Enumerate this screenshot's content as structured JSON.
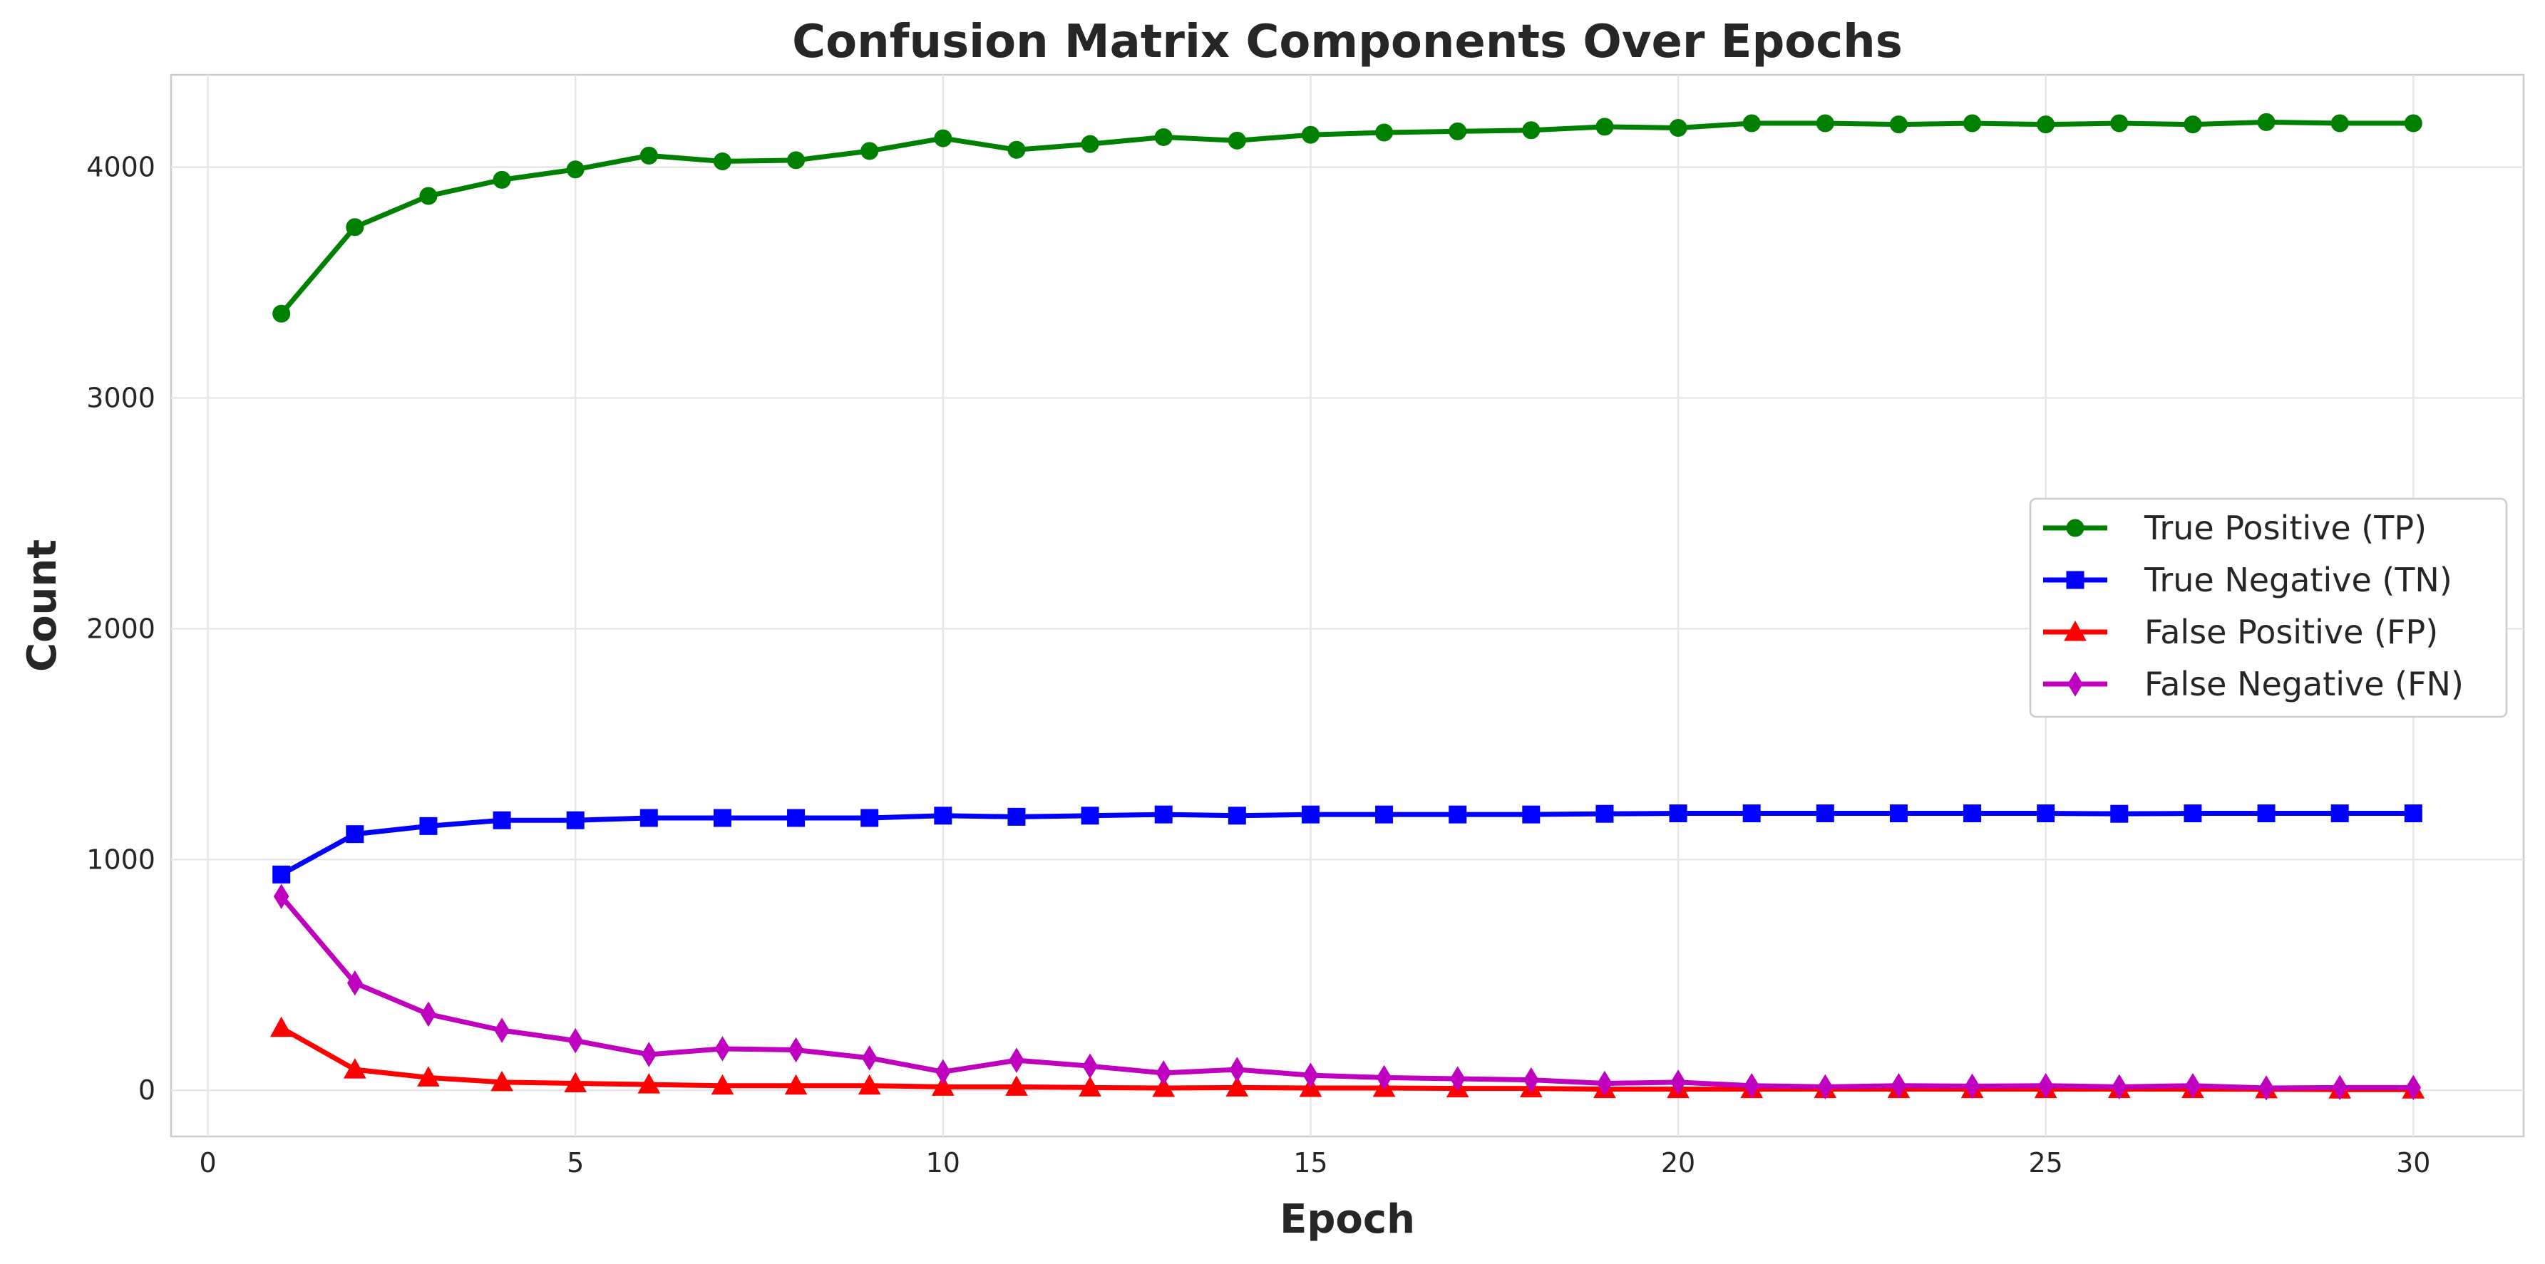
{
  "chart_data": {
    "type": "line",
    "title": "Confusion Matrix Components Over Epochs",
    "xlabel": "Epoch",
    "ylabel": "Count",
    "xlim": [
      -0.5,
      31.5
    ],
    "ylim": [
      -200,
      4400
    ],
    "xticks": [
      0,
      5,
      10,
      15,
      20,
      25,
      30
    ],
    "yticks": [
      0,
      1000,
      2000,
      3000,
      4000
    ],
    "grid": true,
    "legend_position": "center-right",
    "x": [
      1,
      2,
      3,
      4,
      5,
      6,
      7,
      8,
      9,
      10,
      11,
      12,
      13,
      14,
      15,
      16,
      17,
      18,
      19,
      20,
      21,
      22,
      23,
      24,
      25,
      26,
      27,
      28,
      29,
      30
    ],
    "series": [
      {
        "name": "True Positive (TP)",
        "color": "#008000",
        "marker": "circle",
        "values": [
          3365,
          3740,
          3875,
          3945,
          3990,
          4050,
          4025,
          4030,
          4070,
          4125,
          4075,
          4100,
          4130,
          4115,
          4140,
          4150,
          4155,
          4160,
          4175,
          4170,
          4190,
          4190,
          4185,
          4190,
          4185,
          4190,
          4185,
          4195,
          4190,
          4190
        ]
      },
      {
        "name": "True Negative (TN)",
        "color": "#0000ff",
        "marker": "square",
        "values": [
          935,
          1110,
          1145,
          1170,
          1170,
          1180,
          1180,
          1180,
          1180,
          1190,
          1185,
          1190,
          1195,
          1190,
          1195,
          1195,
          1195,
          1195,
          1198,
          1200,
          1200,
          1200,
          1200,
          1200,
          1200,
          1198,
          1200,
          1200,
          1200,
          1200
        ]
      },
      {
        "name": "False Positive (FP)",
        "color": "#ff0000",
        "marker": "triangle",
        "values": [
          270,
          90,
          55,
          35,
          30,
          25,
          20,
          20,
          20,
          15,
          15,
          12,
          10,
          12,
          10,
          10,
          8,
          8,
          5,
          5,
          5,
          5,
          5,
          5,
          5,
          5,
          5,
          4,
          3,
          3
        ]
      },
      {
        "name": "False Negative (FN)",
        "color": "#bf00bf",
        "marker": "diamond",
        "values": [
          840,
          465,
          330,
          260,
          215,
          155,
          180,
          175,
          140,
          80,
          130,
          105,
          75,
          90,
          65,
          55,
          50,
          45,
          30,
          35,
          20,
          15,
          20,
          18,
          20,
          15,
          20,
          10,
          12,
          12
        ]
      }
    ]
  }
}
